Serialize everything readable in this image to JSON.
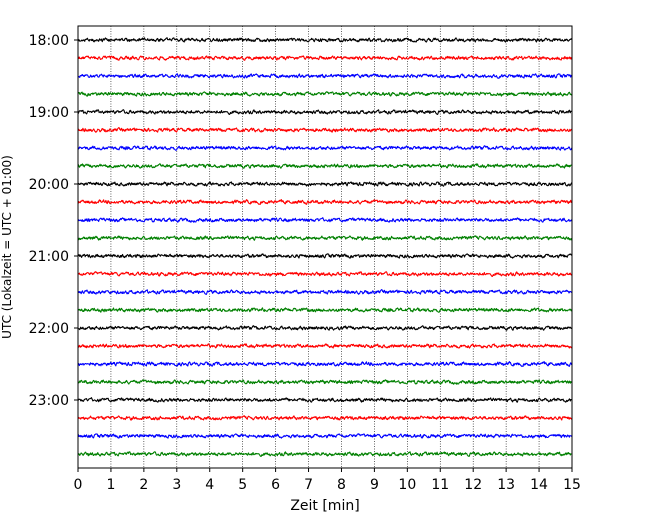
{
  "chart_data": {
    "type": "line",
    "title": "",
    "xlabel": "Zeit  [min]",
    "ylabel": "UTC (Lokalzeit = UTC + 01:00)",
    "xlim": [
      0,
      15
    ],
    "x_ticks": [
      "0",
      "1",
      "2",
      "3",
      "4",
      "5",
      "6",
      "7",
      "8",
      "9",
      "10",
      "11",
      "12",
      "13",
      "14",
      "15"
    ],
    "y_ticks": [
      "18:00",
      "19:00",
      "20:00",
      "21:00",
      "22:00",
      "23:00"
    ],
    "grid_x": true,
    "grid_y": false,
    "trace_interval_minutes": 15,
    "trace_colors": [
      "#000000",
      "#ff0000",
      "#0000ff",
      "#008000"
    ],
    "series": [
      {
        "start": "18:00",
        "color": "#000000"
      },
      {
        "start": "18:15",
        "color": "#ff0000"
      },
      {
        "start": "18:30",
        "color": "#0000ff"
      },
      {
        "start": "18:45",
        "color": "#008000"
      },
      {
        "start": "19:00",
        "color": "#000000"
      },
      {
        "start": "19:15",
        "color": "#ff0000"
      },
      {
        "start": "19:30",
        "color": "#0000ff"
      },
      {
        "start": "19:45",
        "color": "#008000"
      },
      {
        "start": "20:00",
        "color": "#000000"
      },
      {
        "start": "20:15",
        "color": "#ff0000"
      },
      {
        "start": "20:30",
        "color": "#0000ff"
      },
      {
        "start": "20:45",
        "color": "#008000"
      },
      {
        "start": "21:00",
        "color": "#000000"
      },
      {
        "start": "21:15",
        "color": "#ff0000"
      },
      {
        "start": "21:30",
        "color": "#0000ff"
      },
      {
        "start": "21:45",
        "color": "#008000"
      },
      {
        "start": "22:00",
        "color": "#000000"
      },
      {
        "start": "22:15",
        "color": "#ff0000"
      },
      {
        "start": "22:30",
        "color": "#0000ff"
      },
      {
        "start": "22:45",
        "color": "#008000"
      },
      {
        "start": "23:00",
        "color": "#000000"
      },
      {
        "start": "23:15",
        "color": "#ff0000"
      },
      {
        "start": "23:30",
        "color": "#0000ff"
      },
      {
        "start": "23:45",
        "color": "#008000"
      }
    ]
  }
}
